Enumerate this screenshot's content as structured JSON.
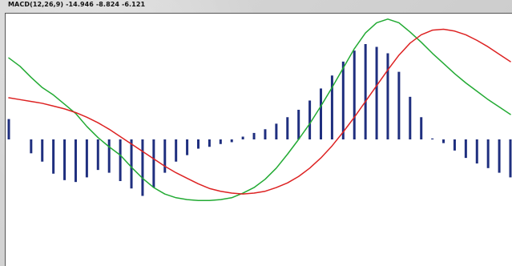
{
  "indicator": {
    "label": "MACD(12,26,9) -14.946 -8.824 -6.121"
  },
  "chart_data": {
    "type": "line",
    "title": "MACD(12,26,9) -14.946 -8.824 -6.121",
    "xlabel": "",
    "ylabel": "",
    "x": [
      0,
      1,
      2,
      3,
      4,
      5,
      6,
      7,
      8,
      9,
      10,
      11,
      12,
      13,
      14,
      15,
      16,
      17,
      18,
      19,
      20,
      21,
      22,
      23,
      24,
      25,
      26,
      27,
      28,
      29,
      30,
      31,
      32,
      33,
      34,
      35,
      36,
      37,
      38,
      39,
      40,
      41,
      42,
      43,
      44,
      45
    ],
    "ylim": [
      -1.35,
      1.35
    ],
    "series": [
      {
        "role": "macd",
        "color": "#22aa33",
        "values": [
          0.88,
          0.79,
          0.67,
          0.56,
          0.48,
          0.38,
          0.28,
          0.14,
          0.02,
          -0.08,
          -0.17,
          -0.3,
          -0.42,
          -0.52,
          -0.59,
          -0.63,
          -0.65,
          -0.66,
          -0.66,
          -0.65,
          -0.63,
          -0.58,
          -0.52,
          -0.43,
          -0.31,
          -0.16,
          0.0,
          0.17,
          0.36,
          0.56,
          0.77,
          0.98,
          1.15,
          1.26,
          1.3,
          1.26,
          1.16,
          1.05,
          0.93,
          0.82,
          0.71,
          0.61,
          0.52,
          0.43,
          0.35,
          0.27
        ]
      },
      {
        "role": "signal",
        "color": "#dd2222",
        "values": [
          0.45,
          0.43,
          0.41,
          0.39,
          0.36,
          0.33,
          0.29,
          0.24,
          0.18,
          0.11,
          0.03,
          -0.05,
          -0.13,
          -0.21,
          -0.29,
          -0.36,
          -0.42,
          -0.48,
          -0.53,
          -0.56,
          -0.58,
          -0.59,
          -0.58,
          -0.56,
          -0.52,
          -0.47,
          -0.4,
          -0.31,
          -0.2,
          -0.07,
          0.08,
          0.24,
          0.41,
          0.58,
          0.75,
          0.91,
          1.04,
          1.13,
          1.18,
          1.19,
          1.17,
          1.13,
          1.07,
          1.0,
          0.92,
          0.84
        ]
      }
    ],
    "histogram": {
      "role": "histogram",
      "color": "#1f2f7f",
      "values": [
        0.22,
        0.0,
        -0.15,
        -0.24,
        -0.37,
        -0.44,
        -0.46,
        -0.41,
        -0.33,
        -0.36,
        -0.45,
        -0.53,
        -0.61,
        -0.52,
        -0.36,
        -0.24,
        -0.17,
        -0.1,
        -0.08,
        -0.05,
        -0.03,
        0.03,
        0.07,
        0.11,
        0.17,
        0.24,
        0.32,
        0.42,
        0.55,
        0.69,
        0.84,
        0.96,
        1.03,
        1.0,
        0.93,
        0.73,
        0.46,
        0.24,
        0.01,
        -0.04,
        -0.12,
        -0.2,
        -0.26,
        -0.31,
        -0.36,
        -0.41
      ]
    },
    "grid": false,
    "legend": "none"
  }
}
